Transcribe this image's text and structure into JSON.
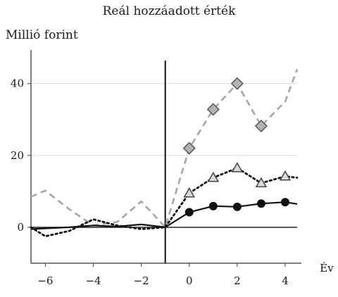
{
  "chart_data": {
    "type": "line",
    "title": "Reál hozzáadott érték",
    "ylabel": "Millió forint",
    "xlabel": "Év",
    "xlim": [
      -6.6,
      4.5
    ],
    "ylim": [
      -10,
      47
    ],
    "xticks": [
      -6,
      -4,
      -2,
      0,
      2,
      4
    ],
    "yticks": [
      0,
      20,
      40
    ],
    "grid": "horizontal",
    "event_line_x": -1,
    "series": [
      {
        "style": "dashed-gray",
        "x": [
          -6.6,
          -6,
          -5,
          -4,
          -3,
          -2,
          -1,
          0,
          1,
          2,
          3,
          4,
          4.5
        ],
        "y": [
          8.5,
          10.2,
          5,
          0.5,
          1.5,
          7.2,
          0,
          22,
          32.8,
          40,
          28.2,
          35,
          44
        ],
        "markers": {
          "shape": "diamond",
          "x": [
            0,
            1,
            2,
            3
          ],
          "y": [
            22,
            32.8,
            40,
            28.2
          ]
        }
      },
      {
        "style": "dotted-black",
        "x": [
          -6.6,
          -6,
          -5,
          -4,
          -3,
          -2,
          -1,
          0,
          1,
          2,
          3,
          4,
          4.5
        ],
        "y": [
          0,
          -2.5,
          -1,
          2.2,
          0.5,
          -0.5,
          0,
          9.5,
          13.8,
          16.5,
          12.3,
          14.2,
          13.8
        ],
        "markers": {
          "shape": "triangle",
          "x": [
            0,
            1,
            2,
            3,
            4
          ],
          "y": [
            9.5,
            13.8,
            16.5,
            12.3,
            14.2
          ]
        }
      },
      {
        "style": "solid-black",
        "x": [
          -6.6,
          -6,
          -5,
          -4,
          -3,
          -2,
          -1,
          0,
          1,
          2,
          3,
          4,
          4.5
        ],
        "y": [
          -0.5,
          -0.3,
          0,
          0.5,
          0.2,
          0.8,
          0,
          4.2,
          5.9,
          5.7,
          6.6,
          7.0,
          6.5
        ],
        "markers": {
          "shape": "circle",
          "x": [
            0,
            1,
            2,
            3,
            4
          ],
          "y": [
            4.2,
            5.9,
            5.7,
            6.6,
            7.0
          ]
        }
      }
    ]
  }
}
